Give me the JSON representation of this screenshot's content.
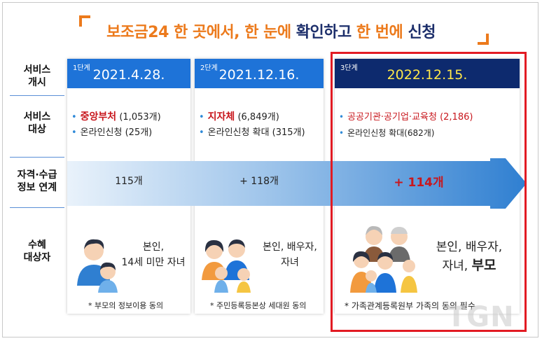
{
  "title": {
    "part1": "보조금24 한 곳에서, 한 눈에",
    "part2": "확인하고",
    "part3": "한 번에",
    "part4": "신청"
  },
  "row_labels": {
    "service_start": "서비스\n개시",
    "service_target": "서비스\n대상",
    "info_link": "자격·수급\n정보 연계",
    "beneficiary": "수혜\n대상자"
  },
  "stages": [
    {
      "stage": "1단계",
      "date": "2021.4.28.",
      "target_bold": "중앙부처",
      "target_rest": "(1,053개)",
      "online": "온라인신청 (25개)",
      "link_count": "115개",
      "beneficiary": "본인,\n14세 미만 자녀",
      "note": "* 부모의 정보이용 동의"
    },
    {
      "stage": "2단계",
      "date": "2021.12.16.",
      "target_bold": "지자체",
      "target_rest": "(6,849개)",
      "online": "온라인신청 확대 (315개)",
      "link_count": "+ 118개",
      "beneficiary": "본인, 배우자,\n자녀",
      "note": "* 주민등록등본상 세대원 동의"
    },
    {
      "stage": "3단계",
      "date": "2022.12.15.",
      "target_bold": "공공기관·공기업·교육청 (2,186)",
      "target_rest": "",
      "online": "온라인신청 확대(682개)",
      "link_count": "+ 114개",
      "beneficiary_main": "본인, 배우자,",
      "beneficiary_sub": "자녀,",
      "beneficiary_bold": "부모",
      "note": "* 가족관계등록원부 가족의 동의 필수"
    }
  ],
  "watermark": "TGN",
  "colors": {
    "accent_orange": "#ec7a1c",
    "navy": "#1d2f6b",
    "blue_header": "#1e73d8",
    "dark_header": "#0d2a6e",
    "highlight_red": "#e21b23",
    "date_yellow": "#ffe84a"
  }
}
